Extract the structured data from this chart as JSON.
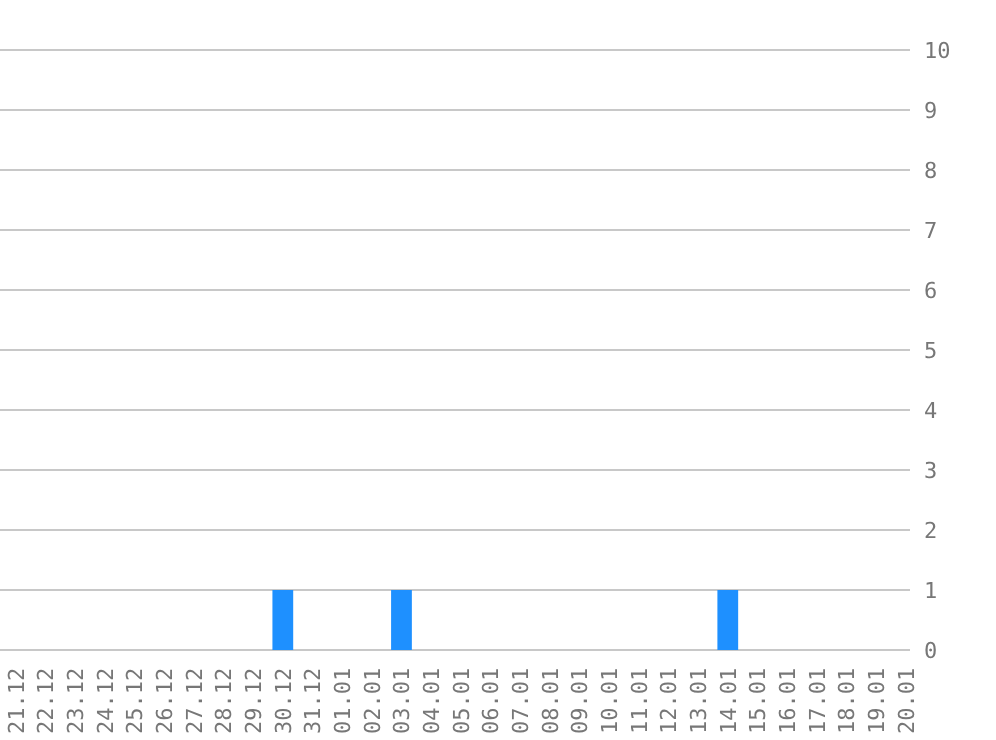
{
  "chart_data": {
    "type": "bar",
    "categories": [
      "21.12",
      "22.12",
      "23.12",
      "24.12",
      "25.12",
      "26.12",
      "27.12",
      "28.12",
      "29.12",
      "30.12",
      "31.12",
      "01.01",
      "02.01",
      "03.01",
      "04.01",
      "05.01",
      "06.01",
      "07.01",
      "08.01",
      "09.01",
      "10.01",
      "11.01",
      "12.01",
      "13.01",
      "14.01",
      "15.01",
      "16.01",
      "17.01",
      "18.01",
      "19.01",
      "20.01"
    ],
    "values": [
      0,
      0,
      0,
      0,
      0,
      0,
      0,
      0,
      0,
      1,
      0,
      0,
      0,
      1,
      0,
      0,
      0,
      0,
      0,
      0,
      0,
      0,
      0,
      0,
      1,
      0,
      0,
      0,
      0,
      0,
      0
    ],
    "color": "#1e90ff",
    "ylim": [
      0,
      10
    ],
    "yticks": [
      0,
      1,
      2,
      3,
      4,
      5,
      6,
      7,
      8,
      9,
      10
    ],
    "grid": "y"
  }
}
